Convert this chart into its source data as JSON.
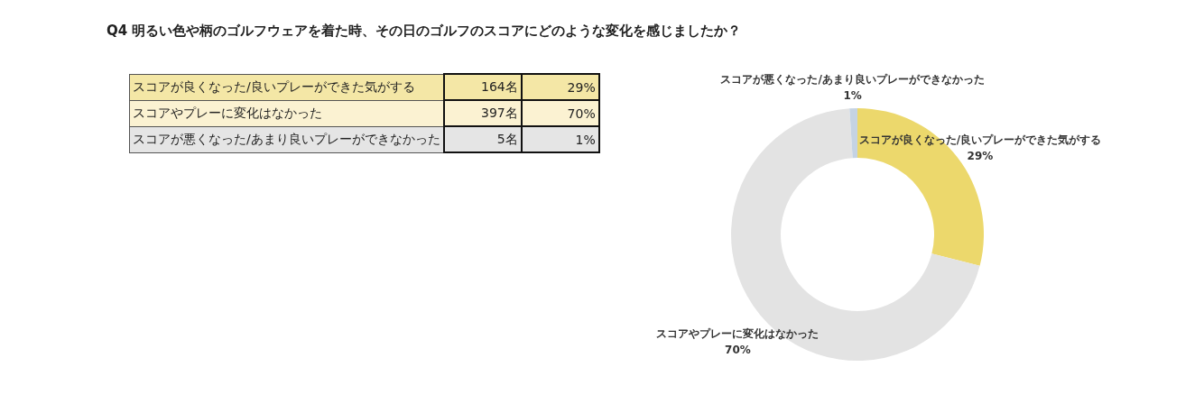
{
  "chart_data": {
    "type": "donut",
    "title": "Q4 明るい色や柄のゴルフウェアを着た時、その日のゴルフのスコアにどのような変化を感じましたか？",
    "categories": [
      "スコアが良くなった/良いプレーができた気がする",
      "スコアやプレーに変化はなかった",
      "スコアが悪くなった/あまり良いプレーができなかった"
    ],
    "values": [
      29,
      70,
      1
    ],
    "value_labels": [
      "29%",
      "70%",
      "1%"
    ],
    "annotations": [
      "164名",
      "397名",
      "5名"
    ],
    "colors": [
      "#ecd86c",
      "#e3e3e3",
      "#c5d3e3"
    ],
    "legend": false
  }
}
